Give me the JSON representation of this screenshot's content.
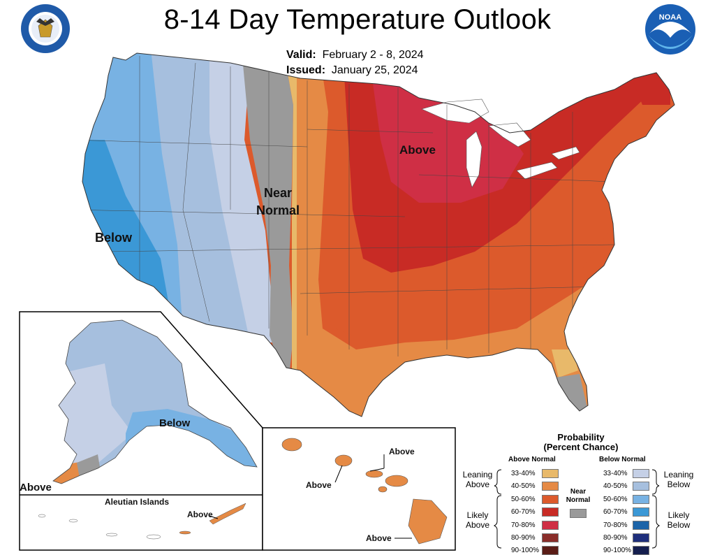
{
  "header": {
    "title": "8-14 Day Temperature Outlook",
    "valid_label": "Valid:",
    "valid_value": "February 2 - 8, 2024",
    "issued_label": "Issued:",
    "issued_value": "January 25, 2024"
  },
  "logos": {
    "left": "seal-of-us-department-of-commerce",
    "right": "noaa-logo"
  },
  "map_labels": {
    "conus_above": "Above",
    "conus_near_line1": "Near",
    "conus_near_line2": "Normal",
    "conus_below": "Below",
    "alaska_below": "Below",
    "alaska_above": "Above",
    "aleutian_title": "Aleutian Islands",
    "aleutian_above": "Above",
    "hawaii_above_top": "Above",
    "hawaii_above_left": "Above",
    "hawaii_above_bottom": "Above"
  },
  "legend": {
    "title_line1": "Probability",
    "title_line2": "(Percent Chance)",
    "above_header": "Above Normal",
    "below_header": "Below Normal",
    "near_label_line1": "Near",
    "near_label_line2": "Normal",
    "leaning_above_line1": "Leaning",
    "leaning_above_line2": "Above",
    "likely_above_line1": "Likely",
    "likely_above_line2": "Above",
    "leaning_below_line1": "Leaning",
    "leaning_below_line2": "Below",
    "likely_below_line1": "Likely",
    "likely_below_line2": "Below",
    "above_bins": [
      "33-40%",
      "40-50%",
      "50-60%",
      "60-70%",
      "70-80%",
      "80-90%",
      "90-100%"
    ],
    "below_bins": [
      "33-40%",
      "40-50%",
      "50-60%",
      "60-70%",
      "70-80%",
      "80-90%",
      "90-100%"
    ],
    "above_colors": [
      "#e8b96a",
      "#e58a45",
      "#dc5a2c",
      "#c82b25",
      "#cf2f45",
      "#8a2d2a",
      "#5a1c16"
    ],
    "below_colors": [
      "#c5d0e6",
      "#a6bfde",
      "#78b2e3",
      "#3b98d6",
      "#1c64a8",
      "#1e2f7c",
      "#141e4e"
    ],
    "near_color": "#9a9a9a"
  }
}
